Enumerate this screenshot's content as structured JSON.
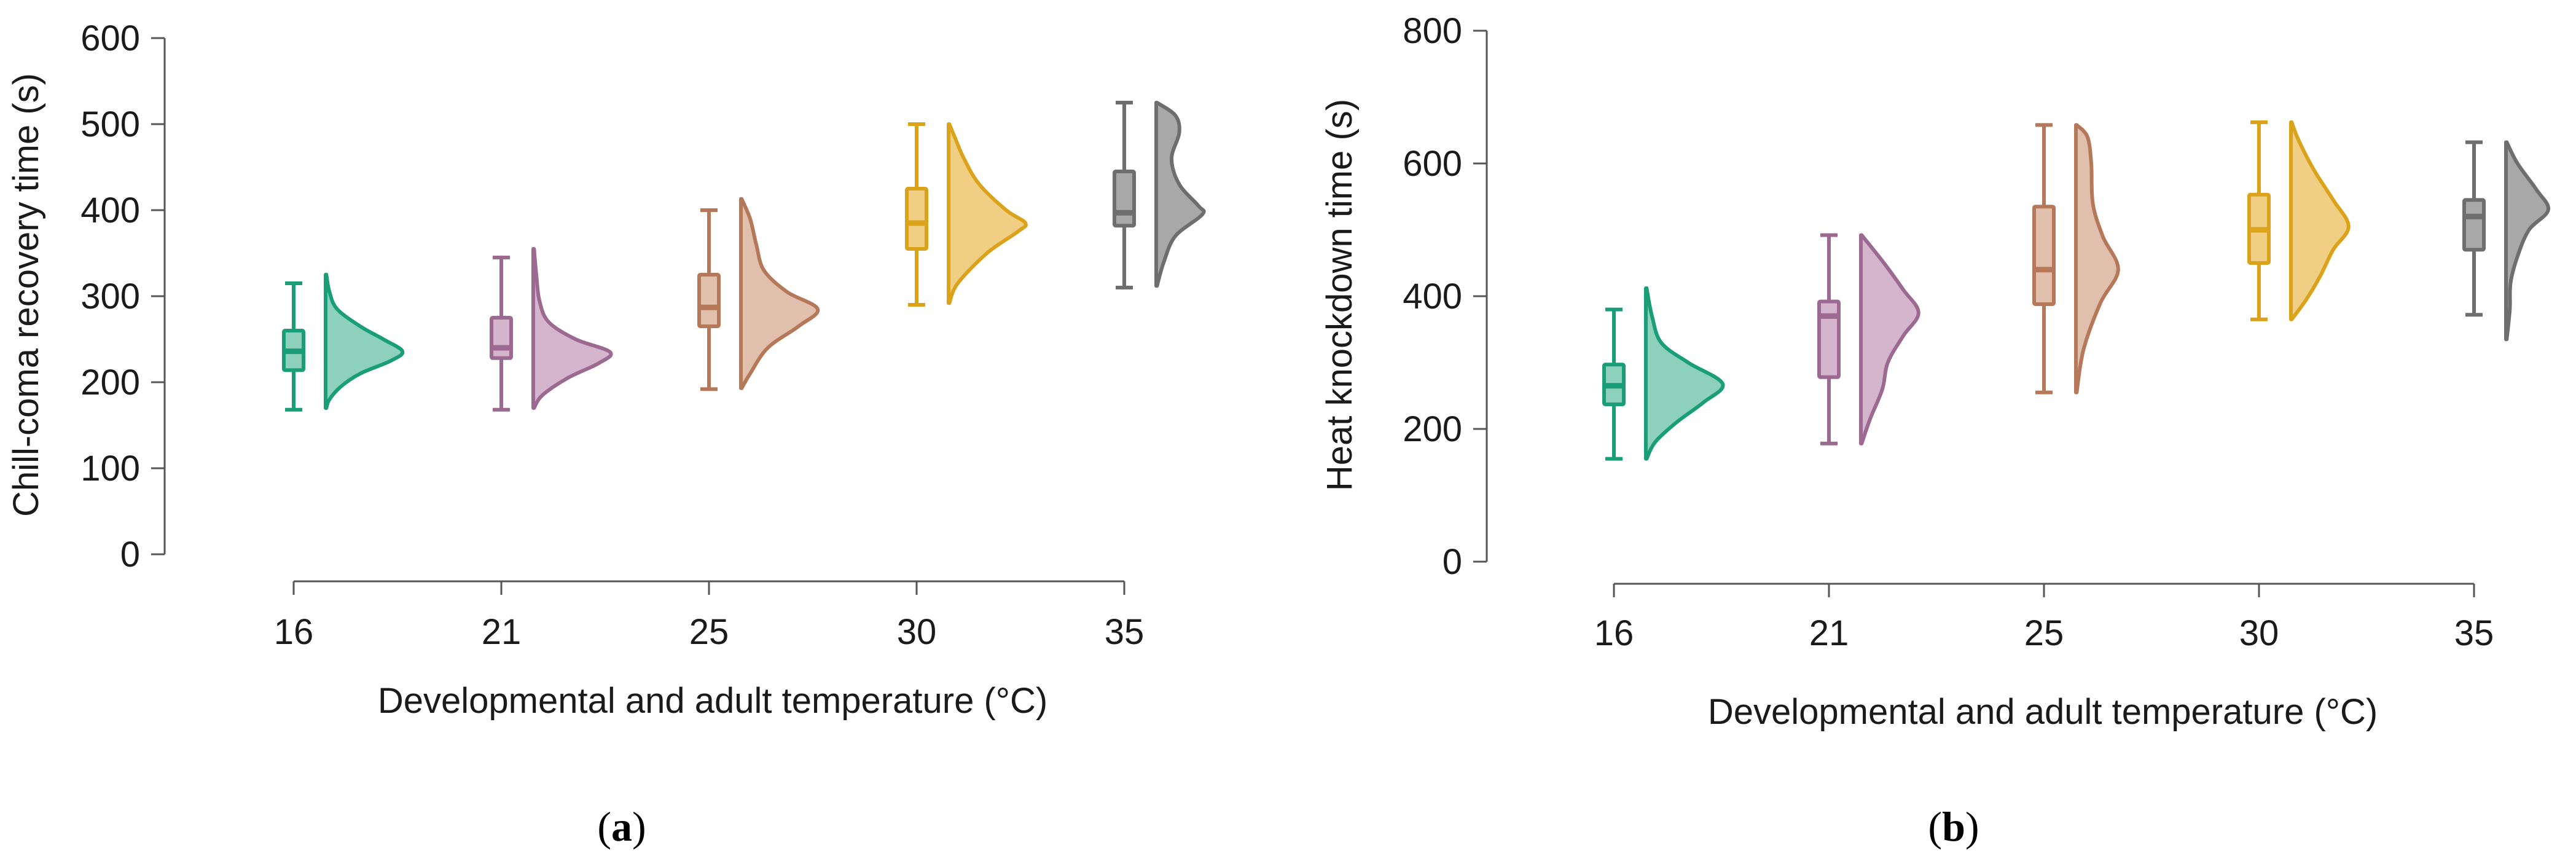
{
  "chart_data": [
    {
      "type": "raincloud",
      "panel_label": "(a)",
      "ylabel": "Chill-coma recovery time (s)",
      "xlabel": "Developmental and adult temperature (°C)",
      "ylim": [
        0,
        600
      ],
      "yticks": [
        0,
        100,
        200,
        300,
        400,
        500,
        600
      ],
      "categories": [
        "16",
        "21",
        "25",
        "30",
        "35"
      ],
      "colors": [
        "#1a9e78",
        "#9c6a91",
        "#b5795a",
        "#dba21c",
        "#6e6e6e"
      ],
      "fills": [
        "#8dd1bd",
        "#d4b5cd",
        "#e0c0ad",
        "#f0cf84",
        "#a8a8a8"
      ],
      "series": [
        {
          "category": "16",
          "min": 168,
          "q1": 214,
          "median": 236,
          "q3": 260,
          "max": 315
        },
        {
          "category": "21",
          "min": 168,
          "q1": 228,
          "median": 240,
          "q3": 275,
          "max": 345
        },
        {
          "category": "25",
          "min": 192,
          "q1": 265,
          "median": 287,
          "q3": 325,
          "max": 400
        },
        {
          "category": "30",
          "min": 290,
          "q1": 355,
          "median": 385,
          "q3": 425,
          "max": 500
        },
        {
          "category": "35",
          "min": 310,
          "q1": 382,
          "median": 397,
          "q3": 445,
          "max": 525
        }
      ],
      "densities": [
        [
          [
            170,
            0.01
          ],
          [
            180,
            0.05
          ],
          [
            195,
            0.2
          ],
          [
            210,
            0.45
          ],
          [
            225,
            0.85
          ],
          [
            236,
            1.0
          ],
          [
            250,
            0.75
          ],
          [
            265,
            0.45
          ],
          [
            285,
            0.15
          ],
          [
            305,
            0.05
          ],
          [
            325,
            0.01
          ]
        ],
        [
          [
            170,
            0.01
          ],
          [
            185,
            0.12
          ],
          [
            205,
            0.45
          ],
          [
            222,
            0.85
          ],
          [
            235,
            1.0
          ],
          [
            250,
            0.55
          ],
          [
            270,
            0.2
          ],
          [
            295,
            0.08
          ],
          [
            325,
            0.04
          ],
          [
            355,
            0.01
          ]
        ],
        [
          [
            193,
            0.01
          ],
          [
            210,
            0.12
          ],
          [
            240,
            0.35
          ],
          [
            265,
            0.75
          ],
          [
            285,
            1.0
          ],
          [
            305,
            0.6
          ],
          [
            330,
            0.3
          ],
          [
            360,
            0.2
          ],
          [
            390,
            0.12
          ],
          [
            413,
            0.01
          ]
        ],
        [
          [
            292,
            0.01
          ],
          [
            315,
            0.12
          ],
          [
            350,
            0.5
          ],
          [
            375,
            0.9
          ],
          [
            385,
            1.0
          ],
          [
            400,
            0.75
          ],
          [
            430,
            0.4
          ],
          [
            460,
            0.2
          ],
          [
            485,
            0.08
          ],
          [
            500,
            0.01
          ]
        ],
        [
          [
            312,
            0.01
          ],
          [
            340,
            0.1
          ],
          [
            370,
            0.25
          ],
          [
            395,
            0.6
          ],
          [
            405,
            0.55
          ],
          [
            430,
            0.3
          ],
          [
            460,
            0.2
          ],
          [
            490,
            0.3
          ],
          [
            510,
            0.25
          ],
          [
            525,
            0.01
          ]
        ]
      ]
    },
    {
      "type": "raincloud",
      "panel_label": "(b)",
      "ylabel": "Heat knockdown time (s)",
      "xlabel": "Developmental and adult temperature (°C)",
      "ylim": [
        0,
        800
      ],
      "yticks": [
        0,
        200,
        400,
        600,
        800
      ],
      "categories": [
        "16",
        "21",
        "25",
        "30",
        "35"
      ],
      "colors": [
        "#1a9e78",
        "#9c6a91",
        "#b5795a",
        "#dba21c",
        "#6e6e6e"
      ],
      "fills": [
        "#8dd1bd",
        "#d4b5cd",
        "#e0c0ad",
        "#f0cf84",
        "#a8a8a8"
      ],
      "series": [
        {
          "category": "16",
          "min": 155,
          "q1": 237,
          "median": 265,
          "q3": 297,
          "max": 380
        },
        {
          "category": "21",
          "min": 178,
          "q1": 278,
          "median": 370,
          "q3": 392,
          "max": 492
        },
        {
          "category": "25",
          "min": 255,
          "q1": 388,
          "median": 440,
          "q3": 535,
          "max": 658
        },
        {
          "category": "30",
          "min": 365,
          "q1": 450,
          "median": 500,
          "q3": 553,
          "max": 662
        },
        {
          "category": "35",
          "min": 372,
          "q1": 470,
          "median": 520,
          "q3": 545,
          "max": 632
        }
      ],
      "densities": [
        [
          [
            155,
            0.01
          ],
          [
            180,
            0.12
          ],
          [
            210,
            0.4
          ],
          [
            240,
            0.75
          ],
          [
            268,
            1.0
          ],
          [
            300,
            0.55
          ],
          [
            330,
            0.2
          ],
          [
            370,
            0.08
          ],
          [
            412,
            0.01
          ]
        ],
        [
          [
            178,
            0.01
          ],
          [
            215,
            0.12
          ],
          [
            260,
            0.28
          ],
          [
            300,
            0.35
          ],
          [
            340,
            0.55
          ],
          [
            375,
            0.75
          ],
          [
            410,
            0.55
          ],
          [
            450,
            0.3
          ],
          [
            492,
            0.01
          ]
        ],
        [
          [
            255,
            0.01
          ],
          [
            320,
            0.1
          ],
          [
            390,
            0.32
          ],
          [
            440,
            0.55
          ],
          [
            490,
            0.35
          ],
          [
            540,
            0.22
          ],
          [
            600,
            0.2
          ],
          [
            640,
            0.15
          ],
          [
            658,
            0.01
          ]
        ],
        [
          [
            365,
            0.01
          ],
          [
            395,
            0.2
          ],
          [
            430,
            0.38
          ],
          [
            470,
            0.55
          ],
          [
            505,
            0.75
          ],
          [
            545,
            0.55
          ],
          [
            590,
            0.3
          ],
          [
            635,
            0.1
          ],
          [
            662,
            0.01
          ]
        ],
        [
          [
            335,
            0.01
          ],
          [
            380,
            0.05
          ],
          [
            420,
            0.06
          ],
          [
            460,
            0.15
          ],
          [
            500,
            0.3
          ],
          [
            530,
            0.55
          ],
          [
            560,
            0.4
          ],
          [
            600,
            0.15
          ],
          [
            632,
            0.01
          ]
        ]
      ]
    }
  ]
}
